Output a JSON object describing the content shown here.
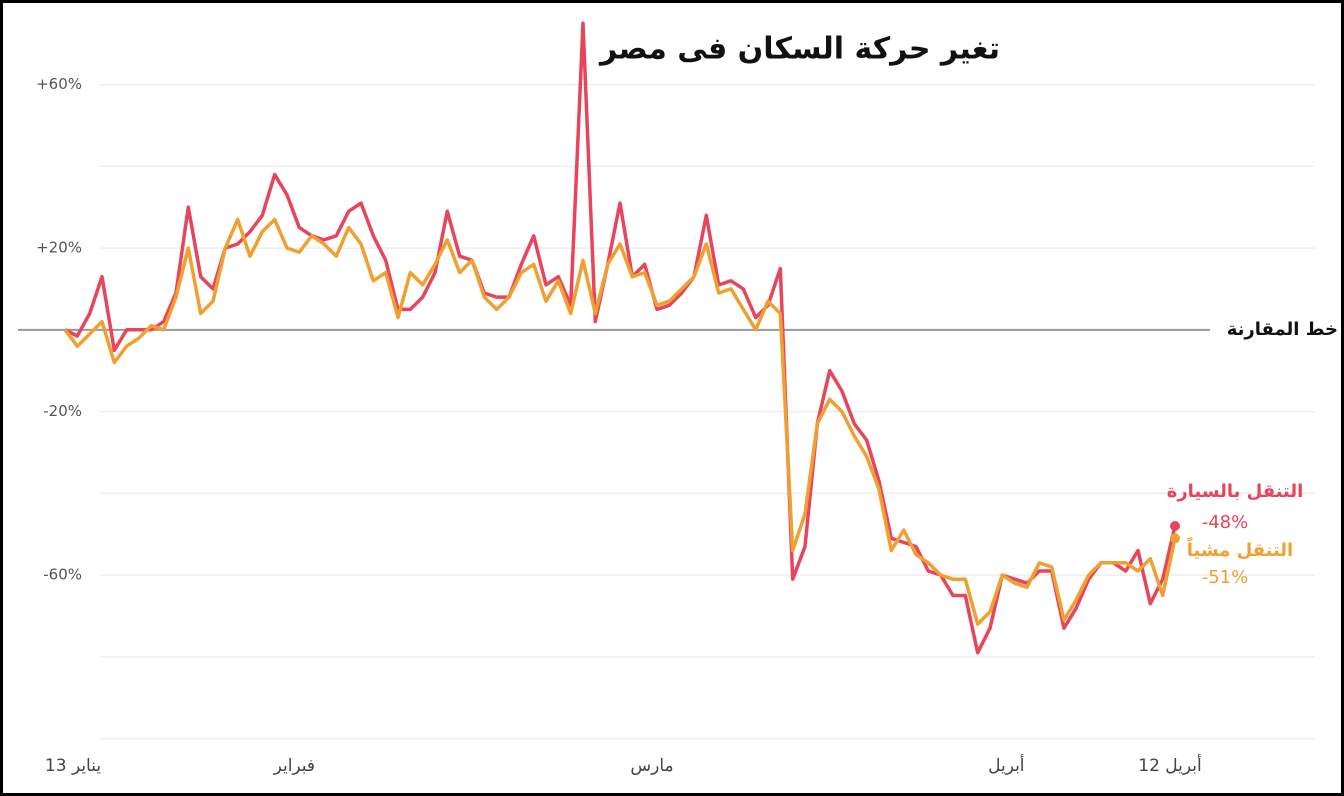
{
  "chart_data": {
    "type": "line",
    "title": "تغير حركة السكان فى مصر",
    "categories": [
      "13 يناير",
      null,
      null,
      null,
      null,
      null,
      null,
      null,
      null,
      null,
      null,
      null,
      null,
      null,
      null,
      null,
      null,
      null,
      null,
      "فبراير",
      null,
      null,
      null,
      null,
      null,
      null,
      null,
      null,
      null,
      null,
      null,
      null,
      null,
      null,
      null,
      null,
      null,
      null,
      null,
      null,
      null,
      null,
      null,
      null,
      null,
      null,
      null,
      null,
      "مارس",
      null,
      null,
      null,
      null,
      null,
      null,
      null,
      null,
      null,
      null,
      null,
      null,
      null,
      null,
      null,
      null,
      null,
      null,
      null,
      null,
      null,
      null,
      null,
      null,
      null,
      null,
      null,
      null,
      null,
      null,
      "أبريل",
      null,
      null,
      null,
      null,
      null,
      null,
      null,
      null,
      null,
      null,
      "أبريل 12"
    ],
    "series": [
      {
        "name": "التنقل بالسيارة",
        "color": "#e8445c",
        "values": [
          0,
          -1.5,
          4,
          13,
          -5,
          0,
          0,
          0,
          2,
          9,
          30,
          13,
          10,
          20,
          21,
          24,
          28,
          38,
          33,
          25,
          23,
          22,
          23,
          29,
          31,
          23,
          17,
          5,
          5,
          8,
          14,
          29,
          18,
          17,
          9,
          8,
          8,
          16,
          23,
          11,
          13,
          6,
          75,
          2,
          16,
          31,
          13,
          16,
          5,
          6,
          9,
          13,
          28,
          11,
          12,
          10,
          3,
          6,
          15,
          -61,
          -53,
          -23,
          -10,
          -15,
          -23,
          -27,
          -37,
          -51,
          -52,
          -53,
          -59,
          -60,
          -65,
          -65,
          -79,
          -73,
          -60,
          -61,
          -62,
          -59,
          -59,
          -73,
          -68,
          -61,
          -57,
          -57,
          -59,
          -54,
          -67,
          -61,
          -48
        ],
        "value_labels": [
          null,
          null,
          null,
          null,
          null,
          null,
          null,
          null,
          null,
          null,
          null,
          null,
          null,
          null,
          null,
          null,
          null,
          null,
          null,
          null,
          null,
          null,
          null,
          null,
          null,
          null,
          null,
          null,
          null,
          null,
          null,
          null,
          null,
          null,
          null,
          null,
          null,
          null,
          null,
          null,
          null,
          null,
          null,
          null,
          null,
          null,
          null,
          null,
          null,
          null,
          null,
          null,
          null,
          null,
          null,
          null,
          null,
          null,
          null,
          null,
          null,
          null,
          null,
          null,
          null,
          null,
          null,
          null,
          null,
          null,
          null,
          null,
          null,
          null,
          null,
          null,
          null,
          null,
          null,
          null,
          null,
          null,
          null,
          null,
          null,
          null,
          null,
          null,
          null,
          null,
          "-48%"
        ]
      },
      {
        "name": "التنقل مشياً",
        "color": "#f0a030",
        "values": [
          0,
          -4,
          -1,
          2,
          -8,
          -4,
          -2,
          1,
          0,
          8,
          20,
          4,
          7,
          20,
          27,
          18,
          24,
          27,
          20,
          19,
          23,
          21,
          18,
          25,
          21,
          12,
          14,
          3,
          14,
          11,
          16,
          22,
          14,
          17,
          8,
          5,
          8,
          14,
          16,
          7,
          12,
          4,
          17,
          4,
          16,
          21,
          13,
          14,
          6,
          7,
          10,
          13,
          21,
          9,
          10,
          5,
          0,
          7,
          4,
          -54,
          -45,
          -23,
          -17,
          -20,
          -26,
          -31,
          -39,
          -54,
          -49,
          -55,
          -57,
          -60,
          -61,
          -61,
          -72,
          -69,
          -60,
          -62,
          -63,
          -57,
          -58,
          -71,
          -66,
          -60,
          -57,
          -57,
          -57,
          -59,
          -56,
          -65,
          -51
        ],
        "value_labels": [
          null,
          null,
          null,
          null,
          null,
          null,
          null,
          null,
          null,
          null,
          null,
          null,
          null,
          null,
          null,
          null,
          null,
          null,
          null,
          null,
          null,
          null,
          null,
          null,
          null,
          null,
          null,
          null,
          null,
          null,
          null,
          null,
          null,
          null,
          null,
          null,
          null,
          null,
          null,
          null,
          null,
          null,
          null,
          null,
          null,
          null,
          null,
          null,
          null,
          null,
          null,
          null,
          null,
          null,
          null,
          null,
          null,
          null,
          null,
          null,
          null,
          null,
          null,
          null,
          null,
          null,
          null,
          null,
          null,
          null,
          null,
          null,
          null,
          null,
          null,
          null,
          null,
          null,
          null,
          null,
          null,
          null,
          null,
          null,
          null,
          null,
          null,
          null,
          null,
          null,
          "-51%"
        ]
      }
    ],
    "ylim": [
      -105,
      78
    ],
    "yticks": [
      {
        "value": 60,
        "label": "+60%"
      },
      {
        "value": 20,
        "label": "+20%"
      },
      {
        "value": -20,
        "label": "-20%"
      },
      {
        "value": -60,
        "label": "-60%"
      }
    ],
    "minor_yticks": [
      40,
      -40,
      -80,
      -100
    ],
    "baseline": {
      "value": 0,
      "label": "خط المقارنة"
    },
    "grid": true
  }
}
